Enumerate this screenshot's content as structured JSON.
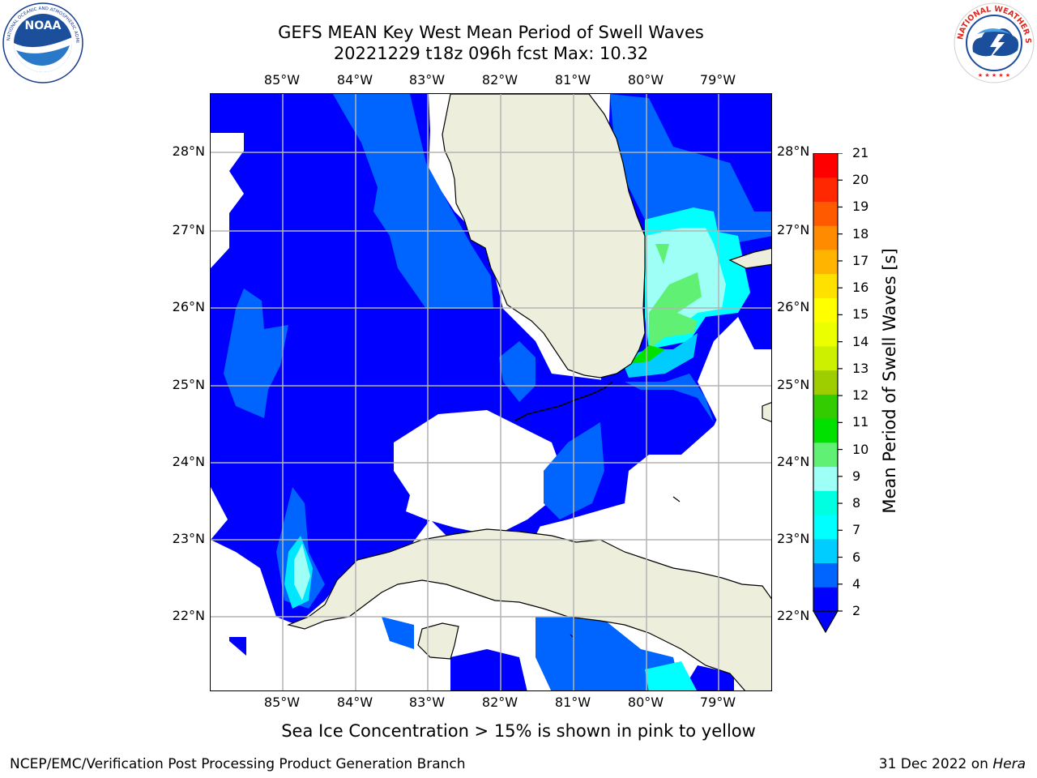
{
  "header": {
    "title_line1": "GEFS MEAN Key West Mean Period of Swell Waves",
    "title_line2": "20221229 t18z 096h fcst   Max: 10.32"
  },
  "logos": {
    "left": "noaa-logo",
    "right": "national-weather-service-logo"
  },
  "map": {
    "lon_labels": [
      "85°W",
      "84°W",
      "83°W",
      "82°W",
      "81°W",
      "80°W",
      "79°W"
    ],
    "lat_labels": [
      "28°N",
      "27°N",
      "26°N",
      "25°N",
      "24°N",
      "23°N",
      "22°N"
    ],
    "land_color": "#eeeedc",
    "grid_color": "#b4b4b4"
  },
  "colorbar": {
    "label": "Mean Period of Swell Waves [s]",
    "ticks": [
      "21",
      "20",
      "19",
      "18",
      "17",
      "16",
      "15",
      "14",
      "13",
      "12",
      "11",
      "10",
      "9",
      "8",
      "7",
      "6",
      "4",
      "2"
    ],
    "colors": [
      "#0000ff",
      "#0064ff",
      "#00cdff",
      "#00ffff",
      "#00ffe0",
      "#9efff6",
      "#60f073",
      "#00e100",
      "#32cc00",
      "#9ecd00",
      "#ccf000",
      "#ecff00",
      "#ffff00",
      "#ffe100",
      "#ffb400",
      "#ff8c00",
      "#ff5a00",
      "#ff2800",
      "#ff0000"
    ],
    "extend": "min"
  },
  "note": "Sea Ice Concentration > 15% is shown in pink to yellow",
  "footer": {
    "left": "NCEP/EMC/Verification Post Processing Product Generation Branch",
    "right_prefix": "31 Dec 2022 on ",
    "right_host": "Hera"
  }
}
